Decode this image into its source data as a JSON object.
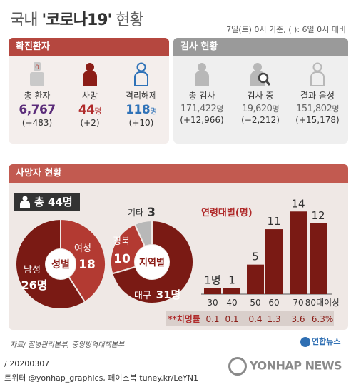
{
  "header": {
    "title_prefix": "국내 ",
    "title_main": "'코로나19'",
    "title_suffix": " 현황",
    "note": "7일(토) 0시 기준, (  ): 6일 0시 대비"
  },
  "confirmed_panel": {
    "title": "확진환자",
    "stats": [
      {
        "label": "총 환자",
        "value": "6,767",
        "unit": "",
        "change": "(+483)",
        "icon": "patient-icon"
      },
      {
        "label": "사망",
        "value": "44",
        "unit": "명",
        "change": "(+2)",
        "icon": "person-icon"
      },
      {
        "label": "격리해제",
        "value": "118",
        "unit": "명",
        "change": "(+10)",
        "icon": "person-outline-icon"
      }
    ]
  },
  "tests_panel": {
    "title": "검사 현황",
    "stats": [
      {
        "label": "총 검사",
        "value": "171,422",
        "unit": "명",
        "change": "(+12,966)",
        "icon": "person-icon"
      },
      {
        "label": "검사 중",
        "value": "19,620",
        "unit": "명",
        "change": "(−2,212)",
        "icon": "magnifier-person-icon"
      },
      {
        "label": "결과 음성",
        "value": "151,802",
        "unit": "명",
        "change": "(+15,178)",
        "icon": "person-outline-icon"
      }
    ]
  },
  "deaths_panel": {
    "title": "사망자 현황",
    "total": "총 44명"
  },
  "chart_data": [
    {
      "type": "pie",
      "center_label": "성별",
      "categories": [
        "여성",
        "남성"
      ],
      "values": [
        18,
        26
      ],
      "labels": [
        "18",
        "26명"
      ]
    },
    {
      "type": "pie",
      "center_label": "지역별",
      "categories": [
        "대구",
        "경북",
        "기타"
      ],
      "values": [
        31,
        10,
        3
      ],
      "labels": [
        "31명",
        "10",
        "3"
      ]
    },
    {
      "type": "bar",
      "title": "연령대별(명)",
      "categories": [
        "30",
        "40",
        "50",
        "60",
        "70",
        "80대이상"
      ],
      "values": [
        1,
        1,
        5,
        11,
        14,
        12
      ],
      "value_labels": [
        "1명",
        "1",
        "5",
        "11",
        "14",
        "12"
      ],
      "ylim": [
        0,
        15
      ],
      "fatality_rate": {
        "label": "**치명률",
        "values": [
          "0.1",
          "0.1",
          "0.4",
          "1.3",
          "3.6",
          "6.3%"
        ]
      }
    }
  ],
  "footer": {
    "source": "자료/ 질병관리본부, 중앙방역대책본부",
    "date_code": "/ 20200307",
    "social": "트위터 @yonhap_graphics, 페이스북 tuney.kr/LeYN1",
    "logo": "연합뉴스",
    "watermark": "YONHAP NEWS"
  },
  "colors": {
    "dark_red": "#7a1a14",
    "mid_red": "#b33a32",
    "gray": "#b8b8b8"
  }
}
